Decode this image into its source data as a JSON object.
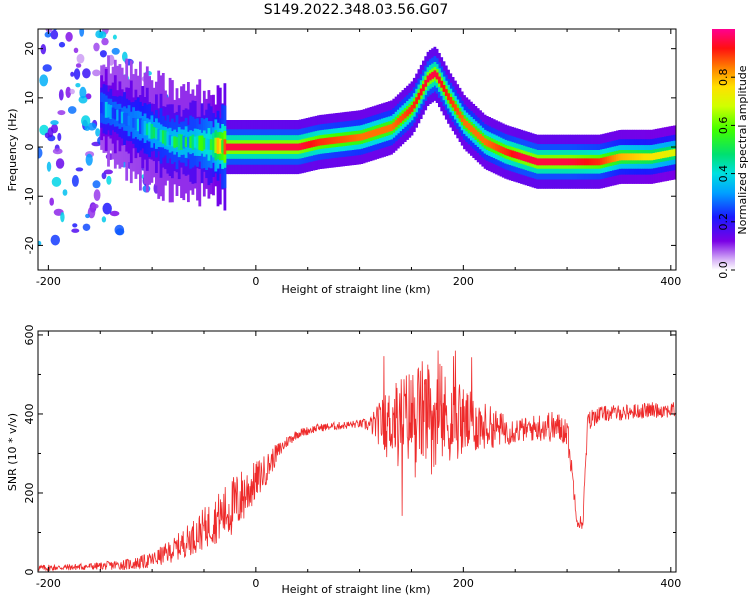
{
  "title": "S149.2022.348.03.56.G07",
  "colors": {
    "snr_line": "#ee2a2a",
    "axis": "#000000",
    "background": "#ffffff"
  },
  "chart_data": [
    {
      "type": "heatmap",
      "xlabel": "Height of straight line (km)",
      "ylabel": "Frequency (Hz)",
      "xlim": [
        -210,
        405
      ],
      "ylim": [
        -25,
        24
      ],
      "xticks": [
        -200,
        0,
        200,
        400
      ],
      "yticks": [
        -20,
        -10,
        0,
        10,
        20
      ],
      "colorbar": {
        "label": "Normalized spectral amplitude",
        "range": [
          0.0,
          1.0
        ],
        "ticks": [
          0.0,
          0.2,
          0.4,
          0.6,
          0.8
        ],
        "colormap": "rainbow (purple-blue-cyan-green-yellow-orange-red-magenta)"
      },
      "ridge": {
        "description": "dominant frequency vs height",
        "x": [
          -210,
          -180,
          -150,
          -120,
          -100,
          -80,
          -60,
          -45,
          -30,
          0,
          40,
          60,
          100,
          130,
          150,
          165,
          172,
          185,
          200,
          220,
          240,
          255,
          270,
          300,
          330,
          350,
          380,
          405
        ],
        "y": [
          3,
          6,
          8,
          5,
          3,
          1,
          1,
          0.5,
          0,
          0,
          0,
          1,
          2,
          4,
          8,
          14,
          15,
          10,
          5,
          1,
          -1,
          -2,
          -3,
          -3,
          -3,
          -2,
          -2,
          -1
        ],
        "amplitude": [
          0.25,
          0.3,
          0.35,
          0.4,
          0.45,
          0.5,
          0.5,
          0.6,
          0.95,
          0.95,
          0.95,
          0.9,
          0.85,
          0.85,
          0.9,
          0.95,
          0.95,
          0.9,
          0.85,
          0.85,
          0.9,
          0.95,
          0.95,
          0.95,
          0.9,
          0.8,
          0.75,
          0.7
        ]
      }
    },
    {
      "type": "line",
      "xlabel": "Height of straight line (km)",
      "ylabel": "SNR (10 * v/v)",
      "xlim": [
        -210,
        405
      ],
      "ylim": [
        0,
        610
      ],
      "xticks": [
        -200,
        0,
        200,
        400
      ],
      "yticks": [
        0,
        200,
        400,
        600
      ],
      "series": [
        {
          "values_description": "SNR envelope vs height (noisy)",
          "x": [
            -210,
            -180,
            -150,
            -120,
            -100,
            -80,
            -60,
            -40,
            -20,
            -10,
            0,
            10,
            20,
            30,
            40,
            60,
            80,
            100,
            110,
            120,
            140,
            160,
            180,
            200,
            220,
            240,
            260,
            280,
            300,
            310,
            315,
            320,
            330,
            360,
            380,
            405
          ],
          "mean": [
            10,
            12,
            15,
            20,
            30,
            55,
            90,
            130,
            170,
            200,
            230,
            260,
            300,
            330,
            350,
            365,
            370,
            375,
            372,
            375,
            390,
            400,
            390,
            380,
            370,
            360,
            360,
            370,
            360,
            130,
            120,
            380,
            400,
            405,
            410,
            410
          ],
          "noise": [
            8,
            8,
            10,
            15,
            20,
            30,
            45,
            60,
            80,
            70,
            50,
            40,
            25,
            15,
            12,
            10,
            10,
            10,
            20,
            60,
            110,
            140,
            120,
            90,
            60,
            40,
            30,
            40,
            40,
            20,
            20,
            30,
            20,
            20,
            20,
            20
          ]
        }
      ]
    }
  ]
}
